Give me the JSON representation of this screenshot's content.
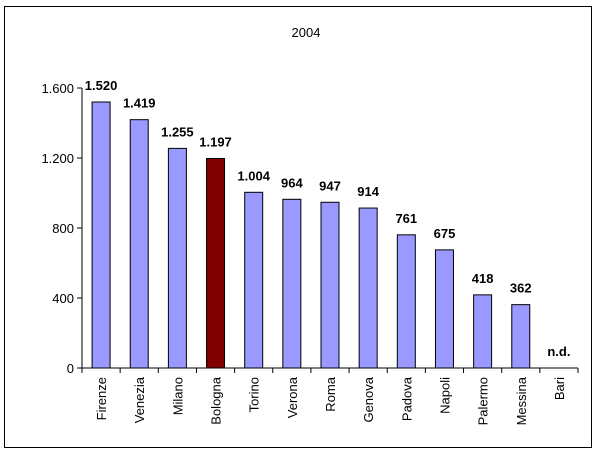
{
  "chart_data": {
    "type": "bar",
    "title": "2004",
    "categories": [
      "Firenze",
      "Venezia",
      "Milano",
      "Bologna",
      "Torino",
      "Verona",
      "Roma",
      "Genova",
      "Padova",
      "Napoli",
      "Palermo",
      "Messina",
      "Bari"
    ],
    "values": [
      1520,
      1419,
      1255,
      1197,
      1004,
      964,
      947,
      914,
      761,
      675,
      418,
      362,
      null
    ],
    "data_labels": [
      "1.520",
      "1.419",
      "1.255",
      "1.197",
      "1.004",
      "964",
      "947",
      "914",
      "761",
      "675",
      "418",
      "362",
      "n.d."
    ],
    "ylim": [
      0,
      1600
    ],
    "yticks": [
      0,
      400,
      800,
      1200,
      1600
    ],
    "ytick_labels": [
      "0",
      "400",
      "800",
      "1.200",
      "1.600"
    ],
    "highlight_category": "Bologna",
    "colors": {
      "bar": "#9999ff",
      "highlight": "#800000",
      "stroke": "#000000"
    },
    "grid": false,
    "legend": "none"
  }
}
